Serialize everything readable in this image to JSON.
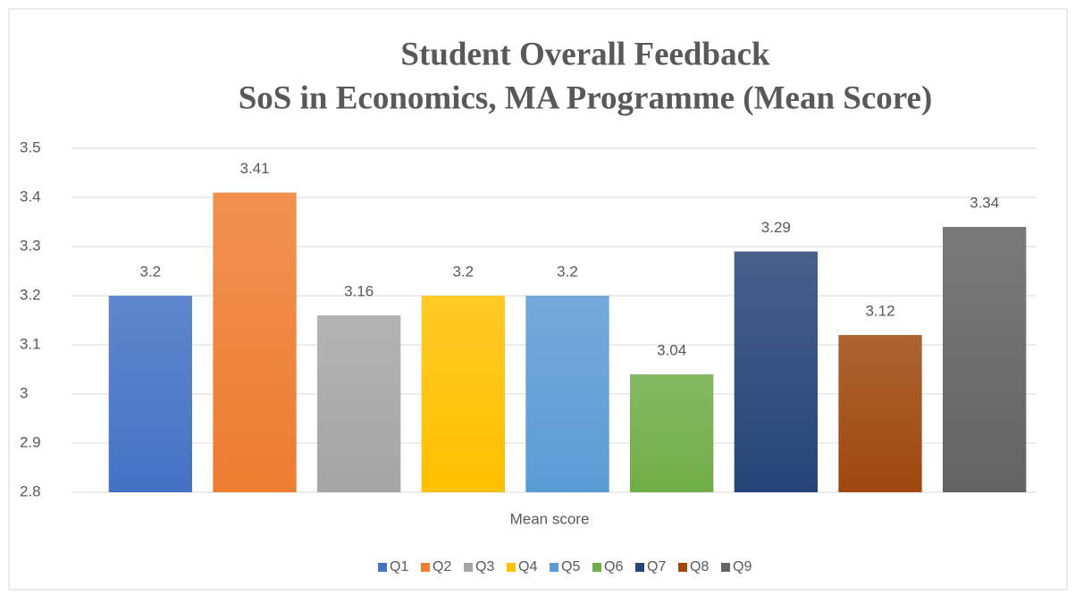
{
  "chart_data": {
    "type": "bar",
    "title": "Student Overall Feedback",
    "subtitle": "SoS in Economics, MA Programme (Mean Score)",
    "categories": [
      "Mean score"
    ],
    "series": [
      {
        "name": "Q1",
        "color": "#4472c4",
        "values": [
          3.2
        ]
      },
      {
        "name": "Q2",
        "color": "#ed7d31",
        "values": [
          3.41
        ]
      },
      {
        "name": "Q3",
        "color": "#a5a5a5",
        "values": [
          3.16
        ]
      },
      {
        "name": "Q4",
        "color": "#ffc000",
        "values": [
          3.2
        ]
      },
      {
        "name": "Q5",
        "color": "#5b9bd5",
        "values": [
          3.2
        ]
      },
      {
        "name": "Q6",
        "color": "#70ad47",
        "values": [
          3.04
        ]
      },
      {
        "name": "Q7",
        "color": "#264478",
        "values": [
          3.29
        ]
      },
      {
        "name": "Q8",
        "color": "#9e480e",
        "values": [
          3.12
        ]
      },
      {
        "name": "Q9",
        "color": "#636363",
        "values": [
          3.34
        ]
      }
    ],
    "ylim": [
      2.8,
      3.5
    ],
    "yticks": [
      2.8,
      2.9,
      3,
      3.1,
      3.2,
      3.3,
      3.4,
      3.5
    ],
    "grid": true,
    "legend": "bottom"
  }
}
